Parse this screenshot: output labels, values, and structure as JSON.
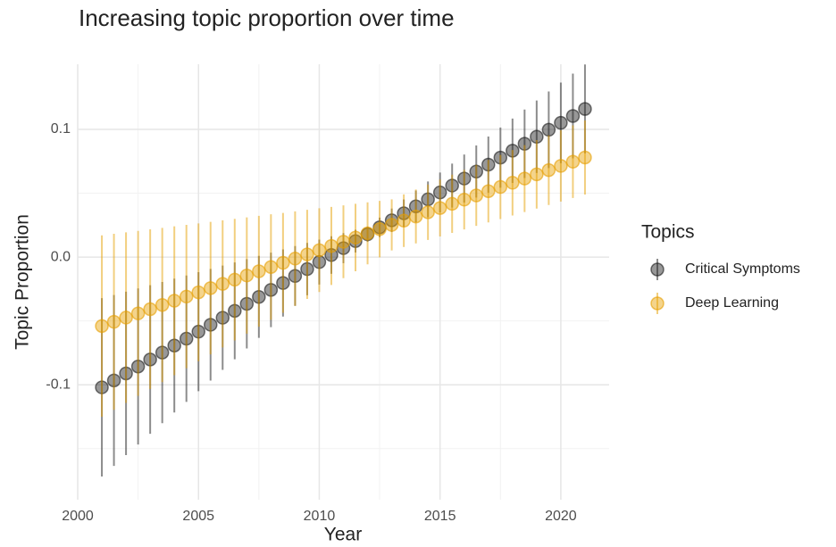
{
  "chart_data": {
    "type": "errorbar",
    "title": "Increasing topic proportion over time",
    "x_label": "Year",
    "y_label": "Topic Proportion",
    "legend_title": "Topics",
    "legend_position": "right",
    "grid": true,
    "xlim": [
      2000,
      2022
    ],
    "ylim": [
      -0.19,
      0.151
    ],
    "xticks": [
      2000,
      2005,
      2010,
      2015,
      2020
    ],
    "yticks": [
      -0.1,
      {
        "value": 0,
        "label": "0.0"
      },
      0.1
    ],
    "xminor": [
      2002.5,
      2007.5,
      2012.5,
      2017.5
    ],
    "yminor": [
      -0.15,
      -0.05,
      0.05
    ],
    "x": [
      2001,
      2001.5,
      2002,
      2002.5,
      2003,
      2003.5,
      2004,
      2004.5,
      2005,
      2005.5,
      2006,
      2006.5,
      2007,
      2007.5,
      2008,
      2008.5,
      2009,
      2009.5,
      2010,
      2010.5,
      2011,
      2011.5,
      2012,
      2012.5,
      2013,
      2013.5,
      2014,
      2014.5,
      2015,
      2015.5,
      2016,
      2016.5,
      2017,
      2017.5,
      2018,
      2018.5,
      2019,
      2019.5,
      2020,
      2020.5,
      2021
    ],
    "series": [
      {
        "name": "Critical Symptoms",
        "color": "#1a1a1a",
        "values": [
          -0.102,
          -0.0966,
          -0.0911,
          -0.0857,
          -0.0802,
          -0.0748,
          -0.0693,
          -0.0639,
          -0.0584,
          -0.053,
          -0.0475,
          -0.0421,
          -0.0366,
          -0.0312,
          -0.0257,
          -0.0203,
          -0.0148,
          -0.0094,
          -0.0039,
          0.0016,
          0.007,
          0.0125,
          0.0179,
          0.0233,
          0.0288,
          0.0343,
          0.0397,
          0.0452,
          0.0506,
          0.056,
          0.0615,
          0.067,
          0.0724,
          0.0779,
          0.0833,
          0.0887,
          0.0942,
          0.0997,
          0.1051,
          0.1105,
          0.116
        ],
        "errors": [
          0.0698,
          0.0669,
          0.064,
          0.0611,
          0.0582,
          0.0553,
          0.0524,
          0.0495,
          0.0466,
          0.0437,
          0.0408,
          0.0379,
          0.035,
          0.0321,
          0.0292,
          0.0263,
          0.0234,
          0.0205,
          0.0176,
          0.0147,
          0.0118,
          0.0089,
          0.006,
          0.0076,
          0.0092,
          0.0108,
          0.0124,
          0.014,
          0.0156,
          0.0172,
          0.0188,
          0.0204,
          0.022,
          0.0236,
          0.0252,
          0.0268,
          0.0284,
          0.03,
          0.0316,
          0.0332,
          0.0348
        ]
      },
      {
        "name": "Deep Learning",
        "color": "#E69F00",
        "values": [
          -0.054,
          -0.0507,
          -0.0474,
          -0.0441,
          -0.0408,
          -0.0375,
          -0.0342,
          -0.0309,
          -0.0276,
          -0.0243,
          -0.021,
          -0.0177,
          -0.0144,
          -0.0111,
          -0.0078,
          -0.0045,
          -0.0012,
          0.0021,
          0.0054,
          0.0087,
          0.012,
          0.0153,
          0.0186,
          0.0219,
          0.0252,
          0.0285,
          0.0318,
          0.0351,
          0.0384,
          0.0417,
          0.045,
          0.0483,
          0.0516,
          0.0549,
          0.0582,
          0.0615,
          0.0648,
          0.0681,
          0.0714,
          0.0747,
          0.078
        ],
        "errors": [
          0.071,
          0.0689,
          0.0668,
          0.0646,
          0.0625,
          0.0604,
          0.0583,
          0.0561,
          0.054,
          0.0519,
          0.0498,
          0.0476,
          0.0455,
          0.0434,
          0.0413,
          0.0391,
          0.037,
          0.0349,
          0.0328,
          0.0306,
          0.0285,
          0.0264,
          0.0243,
          0.0221,
          0.02,
          0.0206,
          0.0211,
          0.0217,
          0.0223,
          0.0228,
          0.0234,
          0.0239,
          0.0245,
          0.0251,
          0.0256,
          0.0262,
          0.0268,
          0.0273,
          0.0279,
          0.0284,
          0.029
        ]
      }
    ]
  }
}
